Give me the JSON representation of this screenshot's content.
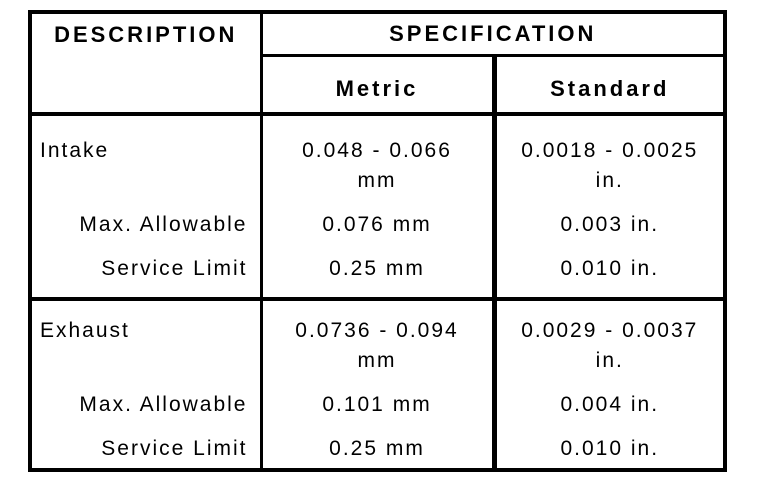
{
  "page": {
    "background_color": "#ffffff",
    "line_color": "#000000"
  },
  "table": {
    "header": {
      "description": "DESCRIPTION",
      "specification": "SPECIFICATION",
      "metric": "Metric",
      "standard": "Standard"
    },
    "sections": [
      {
        "label": "Intake",
        "metric_range": [
          "0.048 - 0.066",
          "mm"
        ],
        "standard_range": [
          "0.0018 - 0.0025",
          "in."
        ],
        "sub_rows": [
          {
            "label": "Max. Allowable",
            "metric": "0.076 mm",
            "standard": "0.003 in."
          },
          {
            "label": "Service Limit",
            "metric": "0.25 mm",
            "standard": "0.010 in."
          }
        ]
      },
      {
        "label": "Exhaust",
        "metric_range": [
          "0.0736 - 0.094",
          "mm"
        ],
        "standard_range": [
          "0.0029 - 0.0037",
          "in."
        ],
        "sub_rows": [
          {
            "label": "Max. Allowable",
            "metric": "0.101 mm",
            "standard": "0.004 in."
          },
          {
            "label": "Service Limit",
            "metric": "0.25 mm",
            "standard": "0.010 in."
          }
        ]
      }
    ]
  }
}
